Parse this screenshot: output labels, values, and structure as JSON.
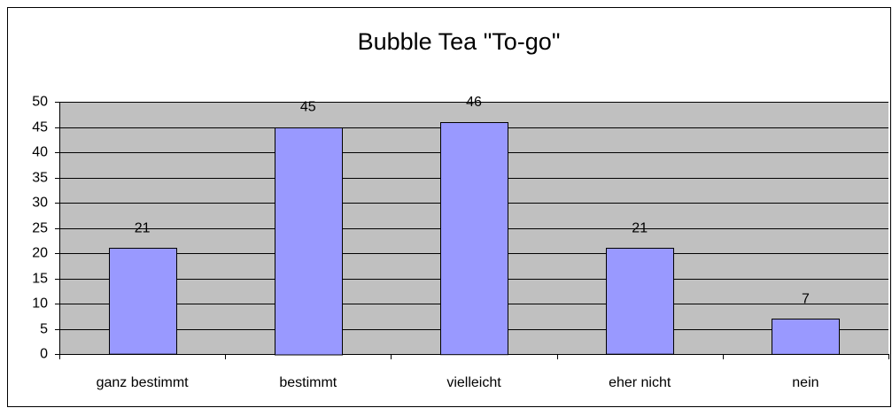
{
  "chart_data": {
    "type": "bar",
    "title": "Bubble Tea \"To-go\"",
    "categories": [
      "ganz bestimmt",
      "bestimmt",
      "vielleicht",
      "eher nicht",
      "nein"
    ],
    "values": [
      21,
      45,
      46,
      21,
      7
    ],
    "color": "#9999ff",
    "ylim": [
      0,
      50
    ],
    "yticks": [
      0,
      5,
      10,
      15,
      20,
      25,
      30,
      35,
      40,
      45,
      50
    ],
    "grid": true
  }
}
